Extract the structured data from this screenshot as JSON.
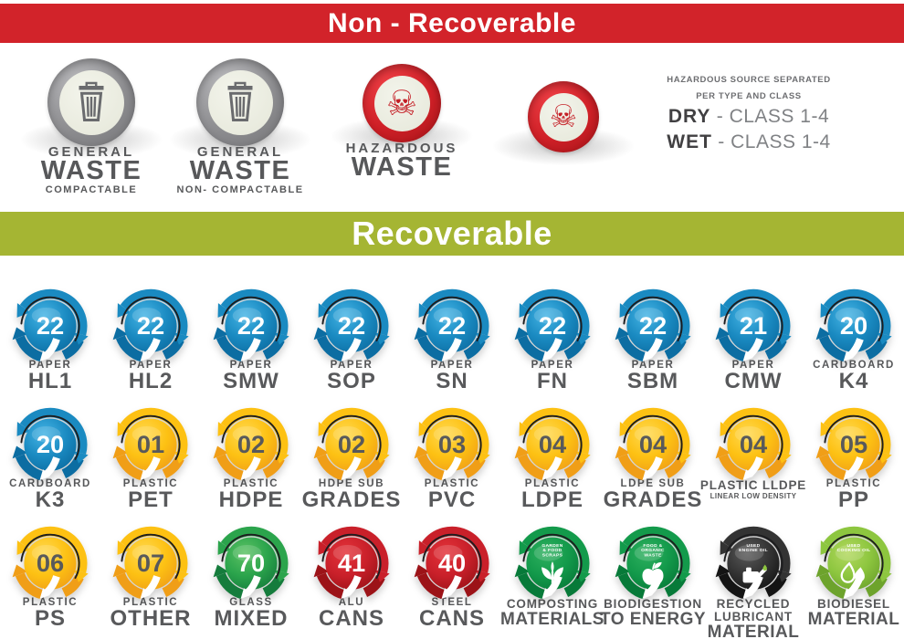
{
  "palette": {
    "background": "#ffffff",
    "banner_red": "#d2232a",
    "banner_green": "#a5b533",
    "label_gray": "#58595b",
    "note_gray": "#6d6e71",
    "note_dark": "#414042",
    "note_light": "#808285",
    "hazard_red": "#c41e25",
    "trash_gray": "#6a6b6e",
    "badge_colors": {
      "blue": {
        "light": "#45b4e5",
        "main": "#1a8ac1",
        "dark": "#0c6da2",
        "num": "#ffffff"
      },
      "yellow": {
        "light": "#ffd94f",
        "main": "#fdc113",
        "dark": "#f09e17",
        "num": "#58595b"
      },
      "green": {
        "light": "#5cc264",
        "main": "#2ba44c",
        "dark": "#157c3c",
        "num": "#ffffff"
      },
      "green2": {
        "light": "#2eb05f",
        "main": "#139a4b",
        "dark": "#077a39",
        "num": "#ffffff"
      },
      "red": {
        "light": "#e4333a",
        "main": "#c9202a",
        "dark": "#9c1318",
        "num": "#ffffff"
      },
      "black": {
        "light": "#5a5a5a",
        "main": "#333333",
        "dark": "#141414",
        "num": "#ffffff"
      },
      "lime": {
        "light": "#b2d85e",
        "main": "#8dc63f",
        "dark": "#6da32c",
        "num": "#ffffff"
      }
    }
  },
  "non_recoverable": {
    "title": "Non - Recoverable",
    "items": [
      {
        "icon": "trash-icon",
        "style": "gray",
        "lines": [
          [
            "GENERAL",
            "sm"
          ],
          [
            "WASTE",
            "lg"
          ],
          [
            "COMPACTABLE",
            "xs"
          ]
        ]
      },
      {
        "icon": "trash-icon",
        "style": "gray",
        "lines": [
          [
            "GENERAL",
            "sm"
          ],
          [
            "WASTE",
            "lg"
          ],
          [
            "NON- COMPACTABLE",
            "xs"
          ]
        ]
      },
      {
        "icon": "skull-icon",
        "style": "red",
        "lines": [
          [
            "HAZARDOUS",
            "sm"
          ],
          [
            "WASTE",
            "lg"
          ]
        ]
      },
      {
        "icon": "skull-icon",
        "style": "red",
        "lines": []
      }
    ],
    "side_note": {
      "line1": "HAZARDOUS SOURCE SEPARATED",
      "line2": "PER TYPE AND CLASS",
      "dry_label": "DRY",
      "dry_value": "- CLASS 1-4",
      "wet_label": "WET",
      "wet_value": "- CLASS 1-4"
    }
  },
  "recoverable": {
    "title": "Recoverable",
    "rows": [
      [
        {
          "number": "22",
          "color": "blue",
          "lines": [
            [
              "PAPER",
              "sm"
            ],
            [
              "HL1",
              "lg"
            ]
          ]
        },
        {
          "number": "22",
          "color": "blue",
          "lines": [
            [
              "PAPER",
              "sm"
            ],
            [
              "HL2",
              "lg"
            ]
          ]
        },
        {
          "number": "22",
          "color": "blue",
          "lines": [
            [
              "PAPER",
              "sm"
            ],
            [
              "SMW",
              "lg"
            ]
          ]
        },
        {
          "number": "22",
          "color": "blue",
          "lines": [
            [
              "PAPER",
              "sm"
            ],
            [
              "SOP",
              "lg"
            ]
          ]
        },
        {
          "number": "22",
          "color": "blue",
          "lines": [
            [
              "PAPER",
              "sm"
            ],
            [
              "SN",
              "lg"
            ]
          ]
        },
        {
          "number": "22",
          "color": "blue",
          "lines": [
            [
              "PAPER",
              "sm"
            ],
            [
              "FN",
              "lg"
            ]
          ]
        },
        {
          "number": "22",
          "color": "blue",
          "lines": [
            [
              "PAPER",
              "sm"
            ],
            [
              "SBM",
              "lg"
            ]
          ]
        },
        {
          "number": "21",
          "color": "blue",
          "lines": [
            [
              "PAPER",
              "sm"
            ],
            [
              "CMW",
              "lg"
            ]
          ]
        },
        {
          "number": "20",
          "color": "blue",
          "lines": [
            [
              "CARDBOARD",
              "sm"
            ],
            [
              "K4",
              "lg"
            ]
          ]
        }
      ],
      [
        {
          "number": "20",
          "color": "blue",
          "lines": [
            [
              "CARDBOARD",
              "sm"
            ],
            [
              "K3",
              "lg"
            ]
          ]
        },
        {
          "number": "01",
          "color": "yellow",
          "lines": [
            [
              "PLASTIC",
              "sm"
            ],
            [
              "PET",
              "lg"
            ]
          ]
        },
        {
          "number": "02",
          "color": "yellow",
          "lines": [
            [
              "PLASTIC",
              "sm"
            ],
            [
              "HDPE",
              "lg"
            ]
          ]
        },
        {
          "number": "02",
          "color": "yellow",
          "lines": [
            [
              "HDPE SUB",
              "sm"
            ],
            [
              "GRADES",
              "lg"
            ]
          ]
        },
        {
          "number": "03",
          "color": "yellow",
          "lines": [
            [
              "PLASTIC",
              "sm"
            ],
            [
              "PVC",
              "lg"
            ]
          ]
        },
        {
          "number": "04",
          "color": "yellow",
          "lines": [
            [
              "PLASTIC",
              "sm"
            ],
            [
              "LDPE",
              "lg"
            ]
          ]
        },
        {
          "number": "04",
          "color": "yellow",
          "lines": [
            [
              "LDPE SUB",
              "sm"
            ],
            [
              "GRADES",
              "lg"
            ]
          ]
        },
        {
          "number": "04",
          "color": "yellow",
          "lines": [
            [
              "PLASTIC LLDPE",
              "md"
            ],
            [
              "LINEAR LOW DENSITY",
              "xs"
            ]
          ]
        },
        {
          "number": "05",
          "color": "yellow",
          "lines": [
            [
              "PLASTIC",
              "sm"
            ],
            [
              "PP",
              "lg"
            ]
          ]
        }
      ],
      [
        {
          "number": "06",
          "color": "yellow",
          "lines": [
            [
              "PLASTIC",
              "sm"
            ],
            [
              "PS",
              "lg"
            ]
          ]
        },
        {
          "number": "07",
          "color": "yellow",
          "lines": [
            [
              "PLASTIC",
              "sm"
            ],
            [
              "OTHER",
              "lg"
            ]
          ]
        },
        {
          "number": "70",
          "color": "green",
          "lines": [
            [
              "GLASS",
              "sm"
            ],
            [
              "MIXED",
              "lg"
            ]
          ]
        },
        {
          "number": "41",
          "color": "red",
          "lines": [
            [
              "ALU",
              "sm"
            ],
            [
              "CANS",
              "lg"
            ]
          ]
        },
        {
          "number": "40",
          "color": "red",
          "lines": [
            [
              "STEEL",
              "sm"
            ],
            [
              "CANS",
              "lg"
            ]
          ]
        },
        {
          "icon": "sprout-icon",
          "color": "green2",
          "caption": [
            "GARDEN",
            "& FOOD",
            "SCRAPS"
          ],
          "lines": [
            [
              "COMPOSTING",
              "md"
            ],
            [
              "MATERIALS",
              "lg2"
            ]
          ]
        },
        {
          "icon": "apple-icon",
          "color": "green2",
          "caption": [
            "FOOD &",
            "ORGANIC",
            "WASTE"
          ],
          "lines": [
            [
              "BIODIGESTION",
              "md"
            ],
            [
              "TO ENERGY",
              "lg2"
            ]
          ]
        },
        {
          "icon": "oilcan-icon",
          "color": "black",
          "caption": [
            "USED",
            "ENGINE OIL"
          ],
          "lines": [
            [
              "RECYCLED",
              "md"
            ],
            [
              "LUBRICANT",
              "md"
            ],
            [
              "MATERIAL",
              "lg2"
            ]
          ]
        },
        {
          "icon": "droplets-icon",
          "color": "lime",
          "caption": [
            "USED",
            "COOKING OIL"
          ],
          "lines": [
            [
              "BIODIESEL",
              "md"
            ],
            [
              "MATERIAL",
              "lg2"
            ]
          ]
        }
      ]
    ]
  }
}
